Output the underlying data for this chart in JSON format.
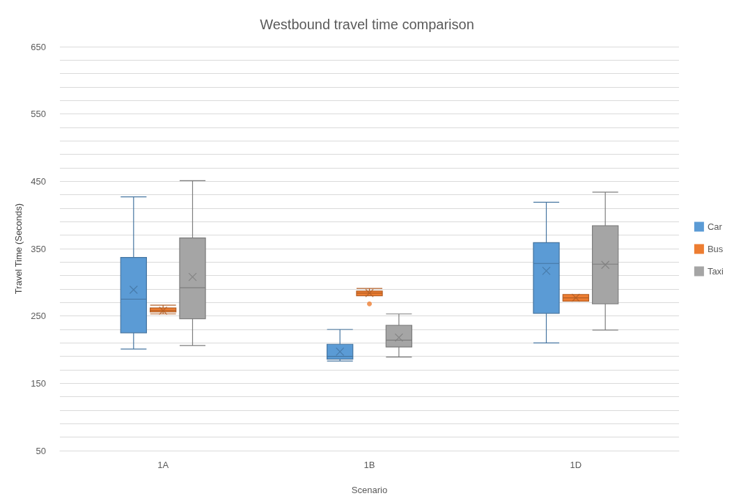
{
  "chart_data": {
    "type": "box",
    "title": "Westbound travel time comparison",
    "xlabel": "Scenario",
    "ylabel": "Travel Time (Seconds)",
    "categories": [
      "1A",
      "1B",
      "1D"
    ],
    "series": [
      {
        "name": "Car",
        "color": "#5b9bd5",
        "boxes": [
          {
            "low": 201,
            "q1": 225,
            "median": 275,
            "q3": 337,
            "high": 427,
            "mean": 289
          },
          {
            "low": 183,
            "q1": 186,
            "median": 190,
            "q3": 208,
            "high": 230,
            "mean": 197
          },
          {
            "low": 210,
            "q1": 254,
            "median": 328,
            "q3": 359,
            "high": 419,
            "mean": 317
          }
        ]
      },
      {
        "name": "Bus",
        "color": "#ed7d31",
        "boxes": [
          {
            "low": 253,
            "q1": 256,
            "median": 258,
            "q3": 262,
            "high": 266,
            "mean": 258
          },
          {
            "low": 280,
            "q1": 280,
            "median": 284,
            "q3": 287,
            "high": 291,
            "mean": 284,
            "outliers": [
              268
            ]
          },
          {
            "low": 272,
            "q1": 272,
            "median": 277,
            "q3": 282,
            "high": 282,
            "mean": 277
          }
        ]
      },
      {
        "name": "Taxi",
        "color": "#a5a5a5",
        "boxes": [
          {
            "low": 206,
            "q1": 246,
            "median": 292,
            "q3": 366,
            "high": 451,
            "mean": 308
          },
          {
            "low": 189,
            "q1": 204,
            "median": 214,
            "q3": 236,
            "high": 253,
            "mean": 218
          },
          {
            "low": 229,
            "q1": 268,
            "median": 327,
            "q3": 384,
            "high": 434,
            "mean": 326
          }
        ]
      }
    ],
    "ylim": [
      50,
      650
    ],
    "yticks": [
      50,
      {
        "value": 70,
        "label": null
      },
      {
        "value": 90,
        "label": null
      },
      {
        "value": 110,
        "label": null
      },
      {
        "value": 130,
        "label": null
      },
      150,
      {
        "value": 170,
        "label": null
      },
      {
        "value": 190,
        "label": null
      },
      {
        "value": 210,
        "label": null
      },
      {
        "value": 230,
        "label": null
      },
      250,
      {
        "value": 270,
        "label": null
      },
      {
        "value": 290,
        "label": null
      },
      {
        "value": 310,
        "label": null
      },
      {
        "value": 330,
        "label": null
      },
      350,
      {
        "value": 370,
        "label": null
      },
      {
        "value": 390,
        "label": null
      },
      {
        "value": 410,
        "label": null
      },
      {
        "value": 430,
        "label": null
      },
      450,
      {
        "value": 470,
        "label": null
      },
      {
        "value": 490,
        "label": null
      },
      {
        "value": 510,
        "label": null
      },
      {
        "value": 530,
        "label": null
      },
      550,
      {
        "value": 570,
        "label": null
      },
      {
        "value": 590,
        "label": null
      },
      {
        "value": 610,
        "label": null
      },
      {
        "value": 630,
        "label": null
      },
      650
    ],
    "grid": true,
    "legend": "right"
  }
}
